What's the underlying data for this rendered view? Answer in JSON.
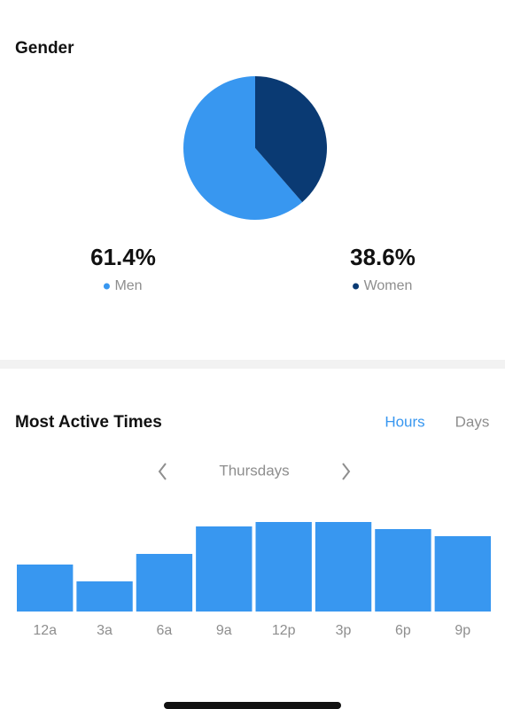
{
  "chart_data": [
    {
      "type": "pie",
      "title": "Gender",
      "categories": [
        "Men",
        "Women"
      ],
      "values": [
        61.4,
        38.6
      ],
      "value_labels": [
        "61.4%",
        "38.6%"
      ],
      "colors": [
        "#3897f0",
        "#0a3a73"
      ]
    },
    {
      "type": "bar",
      "title": "Most Active Times",
      "categories": [
        "12a",
        "3a",
        "6a",
        "9a",
        "12p",
        "3p",
        "6p",
        "9p"
      ],
      "values": [
        53,
        34,
        65,
        96,
        101,
        101,
        93,
        85
      ],
      "color": "#3897f0",
      "ylim": [
        0,
        120
      ]
    }
  ],
  "tabs": [
    "Hours",
    "Days"
  ],
  "day_selector": "Thursdays"
}
